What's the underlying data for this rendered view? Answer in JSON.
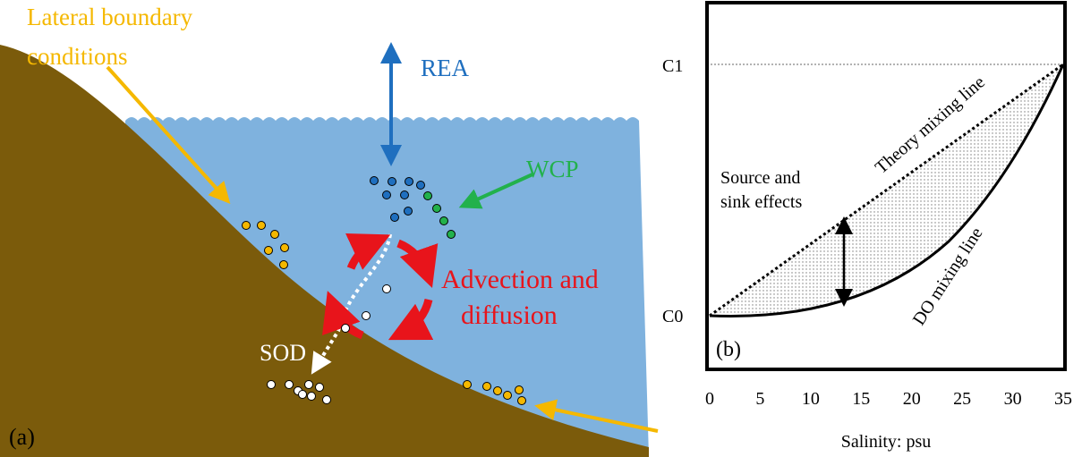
{
  "panel_a": {
    "label": "(a)",
    "lateral_boundary": [
      "Lateral boundary",
      "conditions"
    ],
    "rea": "REA",
    "wcp": "WCP",
    "advection": [
      "Advection and",
      "diffusion"
    ],
    "sod": "SOD"
  },
  "panel_b": {
    "label": "(b)",
    "y_labels": [
      "C1",
      "C0"
    ],
    "x_ticks": [
      0,
      5,
      10,
      15,
      20,
      25,
      30,
      35
    ],
    "x_label": "Salinity: psu",
    "source_sink": [
      "Source and",
      "sink effects"
    ],
    "theory_line": "Theory mixing line",
    "do_line": "DO mixing line"
  }
}
